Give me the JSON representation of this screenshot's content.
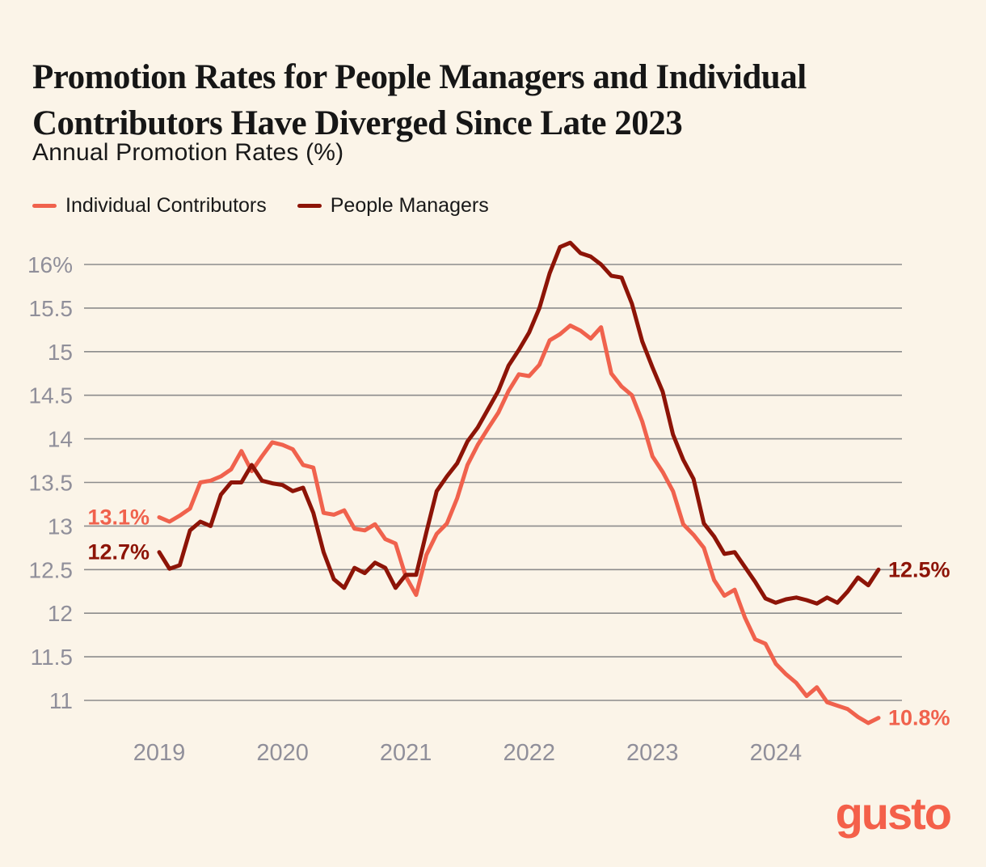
{
  "header": {
    "title_line1": "Promotion Rates for People Managers and Individual",
    "title_line2": "Contributors Have Diverged Since Late 2023",
    "subtitle": "Annual Promotion Rates (%)"
  },
  "legend": [
    {
      "label": "Individual Contributors",
      "color": "#F0624D"
    },
    {
      "label": "People Managers",
      "color": "#8D1407"
    }
  ],
  "chart_data": {
    "type": "line",
    "title": "Promotion Rates for People Managers and Individual Contributors Have Diverged Since Late 2023",
    "ylabel": "Annual Promotion Rates (%)",
    "x_frequency": "monthly",
    "x_range": [
      "2019-01",
      "2024-11"
    ],
    "x_tick_labels": [
      "2019",
      "2020",
      "2021",
      "2022",
      "2023",
      "2024"
    ],
    "y_ticks": [
      16,
      15.5,
      15,
      14.5,
      14,
      13.5,
      13,
      12.5,
      12,
      11.5,
      11
    ],
    "y_tick_labels": [
      "16%",
      "15.5",
      "15",
      "14.5",
      "14",
      "13.5",
      "13",
      "12.5",
      "12",
      "11.5",
      "11"
    ],
    "ylim": [
      10.6,
      16.4
    ],
    "grid": true,
    "legend_position": "top-left",
    "series": [
      {
        "name": "Individual Contributors",
        "color": "#F0624D",
        "start_label": "13.1%",
        "end_label": "10.8%",
        "values": [
          13.1,
          13.05,
          13.12,
          13.2,
          13.5,
          13.52,
          13.57,
          13.65,
          13.86,
          13.63,
          13.8,
          13.96,
          13.93,
          13.88,
          13.7,
          13.67,
          13.15,
          13.13,
          13.18,
          12.97,
          12.95,
          13.02,
          12.85,
          12.8,
          12.42,
          12.21,
          12.67,
          12.91,
          13.03,
          13.32,
          13.7,
          13.93,
          14.12,
          14.3,
          14.55,
          14.74,
          14.72,
          14.85,
          15.13,
          15.2,
          15.3,
          15.24,
          15.15,
          15.28,
          14.75,
          14.6,
          14.5,
          14.2,
          13.8,
          13.62,
          13.4,
          13.02,
          12.9,
          12.75,
          12.38,
          12.2,
          12.27,
          11.95,
          11.7,
          11.65,
          11.42,
          11.3,
          11.2,
          11.05,
          11.15,
          10.98,
          10.94,
          10.9,
          10.81,
          10.74,
          10.8
        ]
      },
      {
        "name": "People Managers",
        "color": "#8D1407",
        "start_label": "12.7%",
        "end_label": "12.5%",
        "values": [
          12.7,
          12.51,
          12.55,
          12.95,
          13.05,
          13.0,
          13.36,
          13.5,
          13.5,
          13.7,
          13.52,
          13.49,
          13.47,
          13.4,
          13.44,
          13.15,
          12.7,
          12.39,
          12.29,
          12.52,
          12.46,
          12.58,
          12.52,
          12.29,
          12.44,
          12.44,
          12.93,
          13.4,
          13.57,
          13.72,
          13.97,
          14.13,
          14.34,
          14.55,
          14.84,
          15.02,
          15.22,
          15.5,
          15.9,
          16.2,
          16.25,
          16.13,
          16.09,
          16.0,
          15.87,
          15.85,
          15.55,
          15.12,
          14.82,
          14.54,
          14.05,
          13.76,
          13.54,
          13.03,
          12.88,
          12.68,
          12.7,
          12.53,
          12.36,
          12.17,
          12.12,
          12.16,
          12.18,
          12.15,
          12.11,
          12.18,
          12.12,
          12.25,
          12.41,
          12.32,
          12.5
        ]
      }
    ]
  },
  "branding": {
    "logo": "gusto",
    "color": "#F4604A"
  }
}
